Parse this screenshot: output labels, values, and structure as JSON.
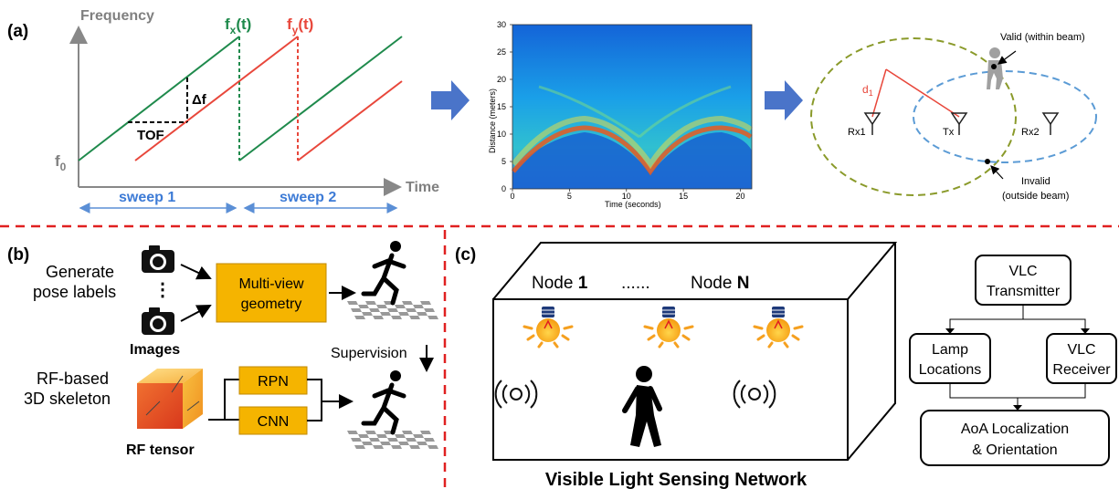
{
  "panel_a": {
    "label": "(a)",
    "chirp": {
      "y_axis_label": "Frequency",
      "x_axis_label": "Time",
      "f0_label": "f",
      "f0_sub": "0",
      "fx_label": "f",
      "fx_sub": "x",
      "fx_suffix": "(t)",
      "fy_label": "f",
      "fy_sub": "y",
      "fy_suffix": "(t)",
      "delta_f_label": "Δf",
      "tof_label": "TOF",
      "sweep1_label": "sweep 1",
      "sweep2_label": "sweep 2"
    },
    "spectrogram": {
      "ylabel": "Distance (meters)",
      "xlabel": "Time (seconds)",
      "y_ticks": [
        "0",
        "5",
        "10",
        "15",
        "20",
        "25",
        "30"
      ],
      "x_ticks": [
        "0",
        "5",
        "10",
        "15",
        "20"
      ]
    },
    "beam": {
      "valid_label": "Valid (within beam)",
      "invalid_label_1": "Invalid",
      "invalid_label_2": "(outside beam)",
      "d1_label": "d",
      "d1_sub": "1",
      "rx1_label": "Rx1",
      "tx_label": "Tx",
      "rx2_label": "Rx2"
    }
  },
  "panel_b": {
    "label": "(b)",
    "generate_line1": "Generate",
    "generate_line2": "pose labels",
    "images_label": "Images",
    "dots": "⋮",
    "multiview_line1": "Multi-view",
    "multiview_line2": "geometry",
    "supervision_label": "Supervision",
    "rf_line1": "RF-based",
    "rf_line2": "3D skeleton",
    "rpn_label": "RPN",
    "cnn_label": "CNN",
    "rf_tensor_label": "RF tensor"
  },
  "panel_c": {
    "label": "(c)",
    "node1_prefix": "Node ",
    "node1_num": "1",
    "ellipsis": "......",
    "nodeN_prefix": "Node ",
    "nodeN_num": "N",
    "network_title": "Visible Light Sensing Network",
    "flow": {
      "transmitter_line1": "VLC",
      "transmitter_line2": "Transmitter",
      "lamp_line1": "Lamp",
      "lamp_line2": "Locations",
      "receiver_line1": "VLC",
      "receiver_line2": "Receiver",
      "aoa_line1": "AoA Localization",
      "aoa_line2": "& Orientation"
    }
  },
  "colors": {
    "green": "#1f8a4c",
    "red": "#e8473b",
    "blue": "#4472c4",
    "orange": "#f5b400",
    "divider": "#e02020",
    "olive": "#8a9a2a",
    "lightblue": "#5b9bd5"
  }
}
